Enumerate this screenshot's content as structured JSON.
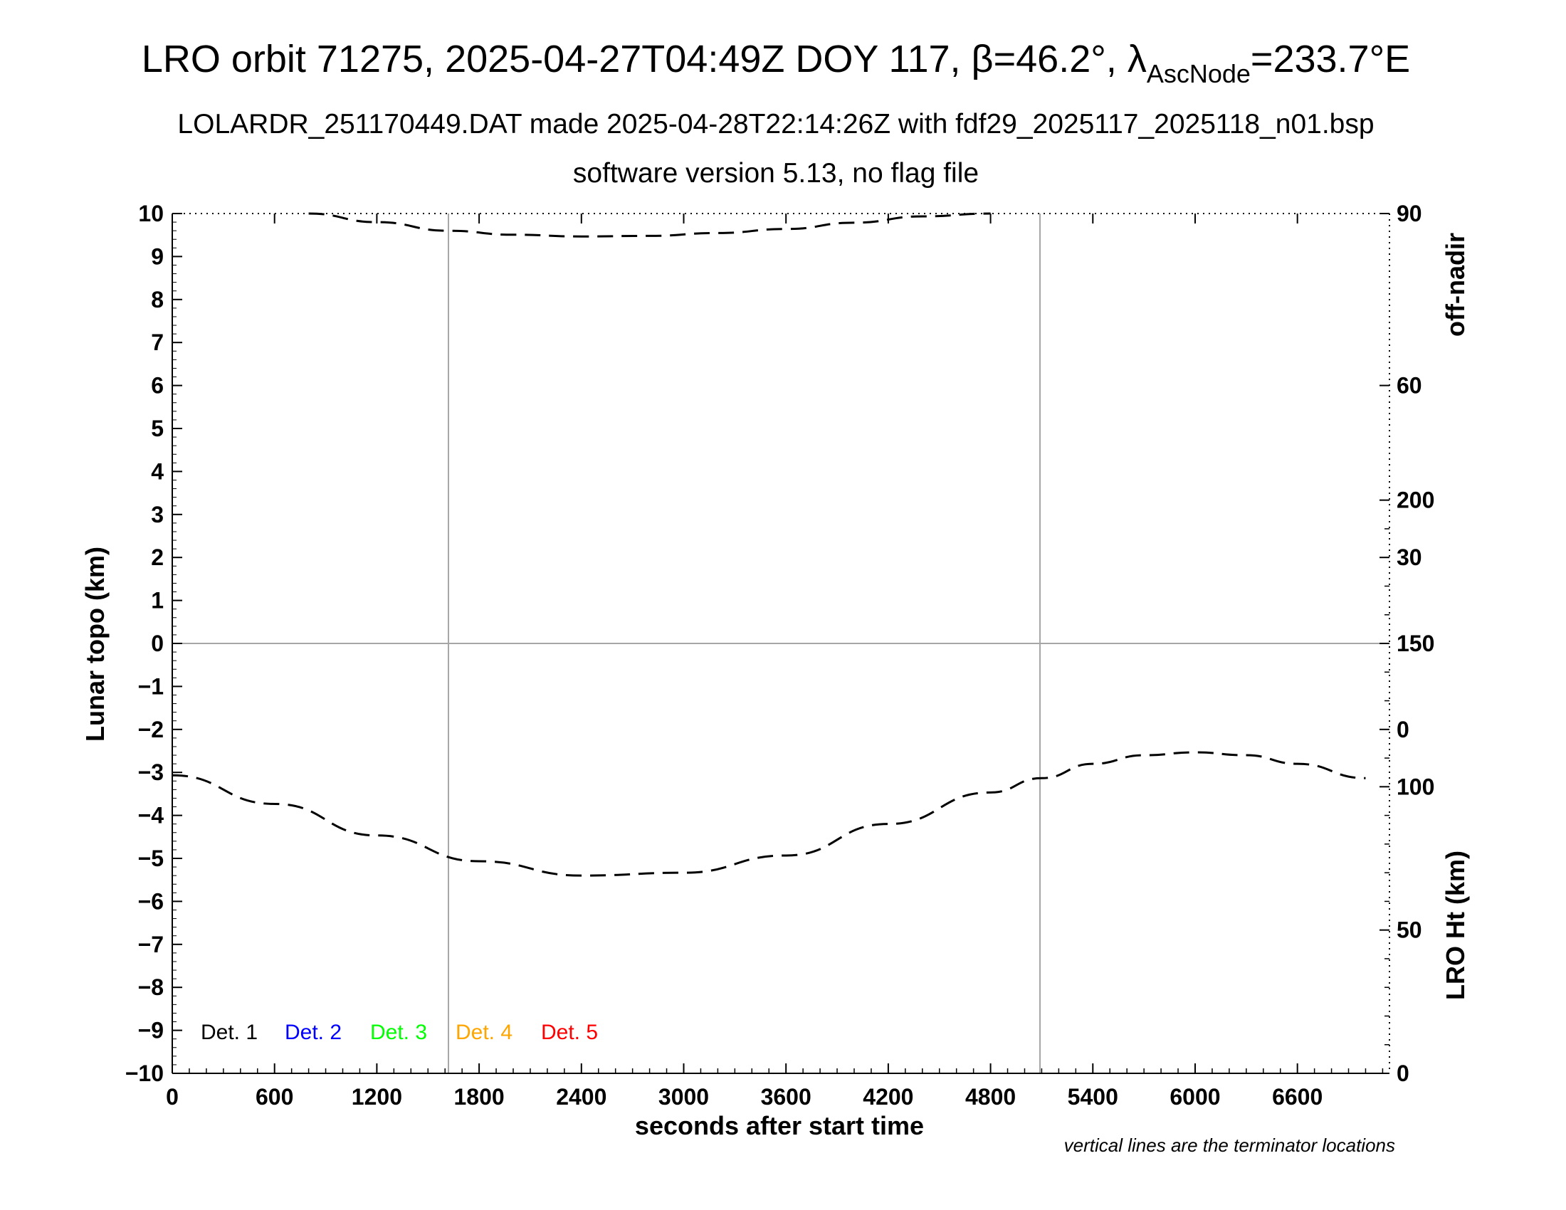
{
  "header": {
    "title_main": "LRO orbit 71275, 2025-04-27T04:49Z DOY 117, β=46.2°, λ",
    "title_sub": "AscNode",
    "title_tail": "=233.7°E",
    "line2": "LOLARDR_251170449.DAT made 2025-04-28T22:14:26Z with fdf29_2025117_2025118_n01.bsp",
    "line3": "software version 5.13, no flag file"
  },
  "footnote": "vertical lines are the terminator locations",
  "chart_data": {
    "type": "line",
    "xlabel": "seconds after start time",
    "ylabel": "Lunar topo (km)",
    "xlim": [
      0,
      7140
    ],
    "ylim": [
      -10,
      10
    ],
    "x_ticks": [
      0,
      600,
      1200,
      1800,
      2400,
      3000,
      3600,
      4200,
      4800,
      5400,
      6000,
      6600
    ],
    "y_ticks": [
      10,
      9,
      8,
      7,
      6,
      5,
      4,
      3,
      2,
      1,
      0,
      -1,
      -2,
      -3,
      -4,
      -5,
      -6,
      -7,
      -8,
      -9,
      -10
    ],
    "y_tick_labels": [
      "10",
      "9",
      "8",
      "7",
      "6",
      "5",
      "4",
      "3",
      "2",
      "1",
      "0",
      "−1",
      "−2",
      "−3",
      "−4",
      "−5",
      "−6",
      "−7",
      "−8",
      "−9",
      "−10"
    ],
    "terminator_lines_x": [
      1620,
      5090
    ],
    "right_axes": [
      {
        "label": "off-nadir",
        "ticks": [
          0,
          30,
          60,
          90
        ],
        "range": [
          -60,
          90
        ],
        "position": "top-right"
      },
      {
        "label": "LRO Ht (km)",
        "ticks": [
          0,
          50,
          100,
          150,
          200
        ],
        "range": [
          0,
          300
        ],
        "position": "bottom-right"
      }
    ],
    "series": [
      {
        "axis": "off-nadir",
        "style": "dashed",
        "color": "#000000",
        "x": [
          800,
          1200,
          1620,
          2000,
          2400,
          2800,
          3200,
          3600,
          4000,
          4400,
          4800
        ],
        "y": [
          90,
          88.5,
          87,
          86.3,
          86,
          86.1,
          86.6,
          87.3,
          88.4,
          89.5,
          90
        ]
      },
      {
        "axis": "LRO Ht (km)",
        "style": "dashed",
        "color": "#000000",
        "x": [
          0,
          600,
          1200,
          1800,
          2400,
          3000,
          3600,
          4200,
          4800,
          5100,
          5400,
          5700,
          6000,
          6300,
          6600,
          7000
        ],
        "y": [
          104,
          94,
          83,
          74,
          69,
          70,
          76,
          87,
          98,
          103,
          108,
          111,
          112,
          111,
          108,
          103
        ]
      }
    ],
    "legend": {
      "placement": "bottom-left",
      "entries": [
        {
          "label": "Det. 1",
          "color": "#000000"
        },
        {
          "label": "Det. 2",
          "color": "#0000ff"
        },
        {
          "label": "Det. 3",
          "color": "#00ff00"
        },
        {
          "label": "Det. 4",
          "color": "#ffa500"
        },
        {
          "label": "Det. 5",
          "color": "#ff0000"
        }
      ]
    }
  }
}
